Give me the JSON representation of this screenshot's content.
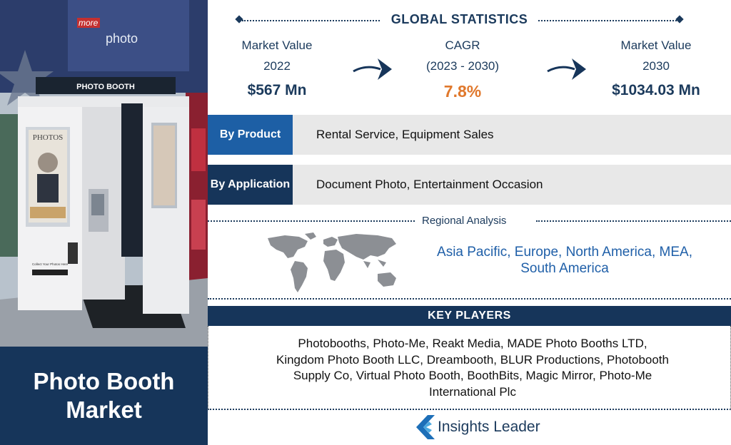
{
  "left": {
    "title": "Photo Booth Market",
    "photo": {
      "sign_text": "PHOTO BOOTH",
      "store_sign": "photo",
      "store_sign_small": "more",
      "screen_text": "PHOTOS",
      "collect_text": "Collect Your Photos Here"
    }
  },
  "global_statistics": {
    "heading": "GLOBAL STATISTICS",
    "market_value_2022": {
      "label": "Market Value",
      "year": "2022",
      "value": "$567 Mn"
    },
    "cagr": {
      "label": "CAGR",
      "period": "(2023 - 2030)",
      "value": "7.8%"
    },
    "market_value_2030": {
      "label": "Market Value",
      "year": "2030",
      "value": "$1034.03 Mn"
    }
  },
  "segments": [
    {
      "label": "By Product",
      "value": "Rental Service, Equipment Sales"
    },
    {
      "label": "By Application",
      "value": "Document Photo, Entertainment Occasion"
    }
  ],
  "regional": {
    "title": "Regional Analysis",
    "regions": "Asia Pacific, Europe, North America, MEA, South America"
  },
  "key_players": {
    "heading": "KEY PLAYERS",
    "list": "Photobooths, Photo-Me, Reakt Media, MADE Photo Booths LTD, Kingdom Photo Booth LLC, Dreambooth, BLUR Productions, Photobooth Supply Co, Virtual Photo Booth, BoothBits, Magic Mirror, Photo-Me International Plc"
  },
  "brand": {
    "name": "Insights Leader"
  },
  "colors": {
    "navy": "#16355a",
    "blue": "#1d5fa5",
    "orange": "#e0782c",
    "text_blue": "#1f5fa8"
  },
  "icons": [
    "photo-booth-illustration",
    "arrow-right-icon",
    "world-map-icon",
    "insights-leader-logo-icon"
  ]
}
